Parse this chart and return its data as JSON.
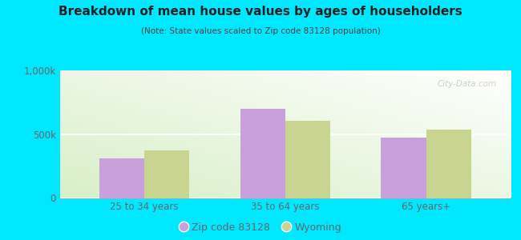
{
  "title": "Breakdown of mean house values by ages of householders",
  "subtitle": "(Note: State values scaled to Zip code 83128 population)",
  "categories": [
    "25 to 34 years",
    "35 to 64 years",
    "65 years+"
  ],
  "zip_values": [
    310000,
    700000,
    475000
  ],
  "state_values": [
    375000,
    610000,
    540000
  ],
  "ylim": [
    0,
    1000000
  ],
  "yticks": [
    0,
    500000,
    1000000
  ],
  "ytick_labels": [
    "0",
    "500k",
    "1,000k"
  ],
  "zip_color": "#c9a0dc",
  "state_color": "#c8d490",
  "bg_left": "#d8efc8",
  "bg_right": "#f0f8f0",
  "bg_top": "#f5fff5",
  "outer_bg": "#00e8ff",
  "bar_width": 0.32,
  "legend_zip": "Zip code 83128",
  "legend_state": "Wyoming",
  "watermark": "City-Data.com",
  "title_color": "#222222",
  "subtitle_color": "#444444",
  "tick_color": "#666666",
  "grid_color": "#dddddd"
}
